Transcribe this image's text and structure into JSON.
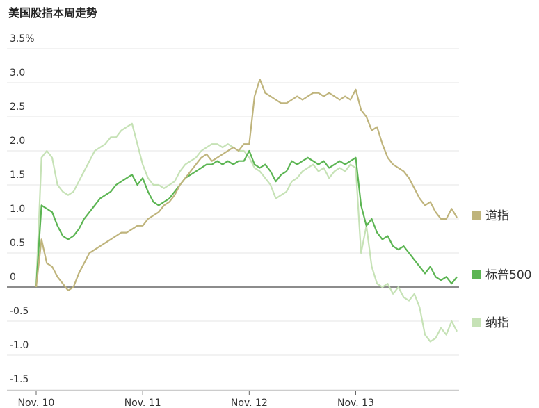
{
  "chart_data": {
    "type": "line",
    "title": "美国股指本周走势",
    "categories": [
      "Nov. 10",
      null,
      null,
      null,
      null,
      null,
      null,
      null,
      null,
      null,
      null,
      null,
      null,
      null,
      null,
      null,
      null,
      null,
      null,
      null,
      "Nov. 11",
      null,
      null,
      null,
      null,
      null,
      null,
      null,
      null,
      null,
      null,
      null,
      null,
      null,
      null,
      null,
      null,
      null,
      null,
      null,
      "Nov. 12",
      null,
      null,
      null,
      null,
      null,
      null,
      null,
      null,
      null,
      null,
      null,
      null,
      null,
      null,
      null,
      null,
      null,
      null,
      null,
      "Nov. 13",
      null,
      null,
      null,
      null,
      null,
      null,
      null,
      null,
      null,
      null,
      null,
      null,
      null,
      null,
      null,
      null,
      null,
      null,
      null
    ],
    "series": [
      {
        "name": "道指",
        "color": "#bfb47c",
        "values": [
          0,
          0.7,
          0.35,
          0.3,
          0.15,
          0.05,
          -0.05,
          0,
          0.2,
          0.35,
          0.5,
          0.55,
          0.6,
          0.65,
          0.7,
          0.75,
          0.8,
          0.8,
          0.85,
          0.9,
          0.9,
          1.0,
          1.05,
          1.1,
          1.2,
          1.25,
          1.35,
          1.5,
          1.6,
          1.7,
          1.8,
          1.9,
          1.95,
          1.85,
          1.9,
          1.95,
          2.0,
          2.05,
          2.0,
          2.1,
          2.1,
          2.8,
          3.05,
          2.85,
          2.8,
          2.75,
          2.7,
          2.7,
          2.75,
          2.8,
          2.75,
          2.8,
          2.85,
          2.85,
          2.8,
          2.85,
          2.8,
          2.75,
          2.8,
          2.75,
          2.9,
          2.6,
          2.5,
          2.3,
          2.35,
          2.1,
          1.9,
          1.8,
          1.75,
          1.7,
          1.6,
          1.45,
          1.3,
          1.2,
          1.25,
          1.1,
          1.0,
          1.0,
          1.15,
          1.02
        ]
      },
      {
        "name": "标普500",
        "color": "#5cb553",
        "values": [
          0,
          1.2,
          1.15,
          1.1,
          0.9,
          0.75,
          0.7,
          0.75,
          0.85,
          1.0,
          1.1,
          1.2,
          1.3,
          1.35,
          1.4,
          1.5,
          1.55,
          1.6,
          1.65,
          1.5,
          1.6,
          1.4,
          1.25,
          1.2,
          1.25,
          1.3,
          1.4,
          1.5,
          1.6,
          1.65,
          1.7,
          1.75,
          1.8,
          1.8,
          1.85,
          1.8,
          1.85,
          1.8,
          1.85,
          1.85,
          2.0,
          1.8,
          1.75,
          1.8,
          1.7,
          1.55,
          1.65,
          1.7,
          1.85,
          1.8,
          1.85,
          1.9,
          1.85,
          1.8,
          1.85,
          1.75,
          1.8,
          1.85,
          1.8,
          1.85,
          1.9,
          1.2,
          0.9,
          1.0,
          0.8,
          0.7,
          0.75,
          0.6,
          0.55,
          0.6,
          0.5,
          0.4,
          0.3,
          0.2,
          0.3,
          0.15,
          0.1,
          0.15,
          0.05,
          0.15
        ]
      },
      {
        "name": "纳指",
        "color": "#c6e2b6",
        "values": [
          0,
          1.9,
          2.0,
          1.9,
          1.5,
          1.4,
          1.35,
          1.4,
          1.55,
          1.7,
          1.85,
          2.0,
          2.05,
          2.1,
          2.2,
          2.2,
          2.3,
          2.35,
          2.4,
          2.1,
          1.8,
          1.6,
          1.5,
          1.5,
          1.45,
          1.5,
          1.55,
          1.7,
          1.8,
          1.85,
          1.9,
          2.0,
          2.05,
          2.1,
          2.1,
          2.05,
          2.1,
          2.05,
          2.0,
          2.0,
          1.9,
          1.75,
          1.7,
          1.6,
          1.5,
          1.3,
          1.35,
          1.4,
          1.55,
          1.6,
          1.7,
          1.75,
          1.8,
          1.7,
          1.75,
          1.6,
          1.7,
          1.75,
          1.7,
          1.8,
          1.75,
          0.5,
          0.9,
          0.3,
          0.05,
          0.0,
          0.05,
          -0.1,
          0.0,
          -0.15,
          -0.2,
          -0.1,
          -0.3,
          -0.7,
          -0.8,
          -0.75,
          -0.6,
          -0.7,
          -0.5,
          -0.65
        ]
      }
    ],
    "ylim": [
      -1.5,
      3.5
    ],
    "yticks": [
      {
        "value": -1.5,
        "label": "-1.5"
      },
      {
        "value": -1,
        "label": "-1.0"
      },
      -0.5,
      0,
      0.5,
      {
        "value": 1,
        "label": "1.0"
      },
      1.5,
      {
        "value": 2,
        "label": "2.0"
      },
      2.5,
      {
        "value": 3,
        "label": "3.0"
      },
      {
        "value": 3.5,
        "label": "3.5%"
      }
    ],
    "grid": true
  }
}
